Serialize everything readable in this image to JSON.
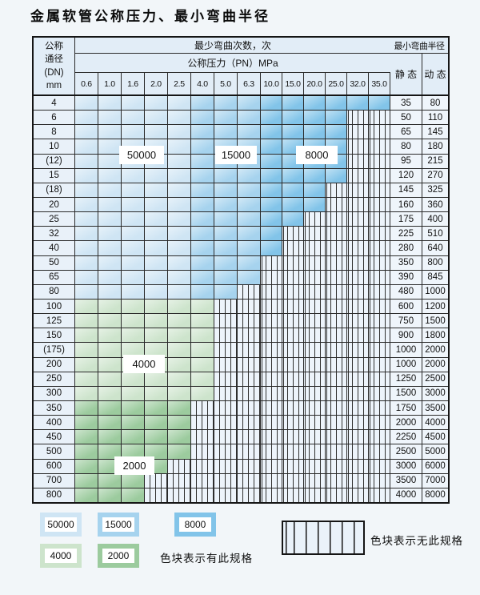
{
  "title": "金属软管公称压力、最小弯曲半径",
  "table": {
    "dn_header_lines": [
      "公称",
      "通径",
      "(DN)",
      "mm"
    ],
    "bend_header": "最少弯曲次数，次",
    "pn_header": "公称压力（PN）MPa",
    "pressure_columns": [
      "0.6",
      "1.0",
      "1.6",
      "2.0",
      "2.5",
      "4.0",
      "5.0",
      "6.3",
      "10.0",
      "15.0",
      "20.0",
      "25.0",
      "32.0",
      "35.0"
    ],
    "radius_header": "最小弯曲半径",
    "static_header": "静 态",
    "dynamic_header": "动 态",
    "rows": [
      {
        "dn": "4",
        "colored_cols": 14,
        "zone": "blue",
        "static": "35",
        "dynamic": "80"
      },
      {
        "dn": "6",
        "colored_cols": 12,
        "zone": "blue",
        "static": "50",
        "dynamic": "110"
      },
      {
        "dn": "8",
        "colored_cols": 12,
        "zone": "blue",
        "static": "65",
        "dynamic": "145"
      },
      {
        "dn": "10",
        "colored_cols": 12,
        "zone": "blue",
        "static": "80",
        "dynamic": "180"
      },
      {
        "dn": "(12)",
        "colored_cols": 12,
        "zone": "blue",
        "static": "95",
        "dynamic": "215"
      },
      {
        "dn": "15",
        "colored_cols": 12,
        "zone": "blue",
        "static": "120",
        "dynamic": "270"
      },
      {
        "dn": "(18)",
        "colored_cols": 11,
        "zone": "blue",
        "static": "145",
        "dynamic": "325"
      },
      {
        "dn": "20",
        "colored_cols": 11,
        "zone": "blue",
        "static": "160",
        "dynamic": "360"
      },
      {
        "dn": "25",
        "colored_cols": 10,
        "zone": "blue",
        "static": "175",
        "dynamic": "400"
      },
      {
        "dn": "32",
        "colored_cols": 9,
        "zone": "blue",
        "static": "225",
        "dynamic": "510"
      },
      {
        "dn": "40",
        "colored_cols": 9,
        "zone": "blue",
        "static": "280",
        "dynamic": "640"
      },
      {
        "dn": "50",
        "colored_cols": 8,
        "zone": "blue",
        "static": "350",
        "dynamic": "800"
      },
      {
        "dn": "65",
        "colored_cols": 8,
        "zone": "blue",
        "static": "390",
        "dynamic": "845"
      },
      {
        "dn": "80",
        "colored_cols": 7,
        "zone": "blue",
        "static": "480",
        "dynamic": "1000"
      },
      {
        "dn": "100",
        "colored_cols": 6,
        "zone": "green_light",
        "static": "600",
        "dynamic": "1200"
      },
      {
        "dn": "125",
        "colored_cols": 6,
        "zone": "green_light",
        "static": "750",
        "dynamic": "1500"
      },
      {
        "dn": "150",
        "colored_cols": 6,
        "zone": "green_light",
        "static": "900",
        "dynamic": "1800"
      },
      {
        "dn": "(175)",
        "colored_cols": 6,
        "zone": "green_light",
        "static": "1000",
        "dynamic": "2000"
      },
      {
        "dn": "200",
        "colored_cols": 6,
        "zone": "green_light",
        "static": "1000",
        "dynamic": "2000"
      },
      {
        "dn": "250",
        "colored_cols": 6,
        "zone": "green_light",
        "static": "1250",
        "dynamic": "2500"
      },
      {
        "dn": "300",
        "colored_cols": 6,
        "zone": "green_light",
        "static": "1500",
        "dynamic": "3000"
      },
      {
        "dn": "350",
        "colored_cols": 5,
        "zone": "green_dark",
        "static": "1750",
        "dynamic": "3500"
      },
      {
        "dn": "400",
        "colored_cols": 5,
        "zone": "green_dark",
        "static": "2000",
        "dynamic": "4000"
      },
      {
        "dn": "450",
        "colored_cols": 5,
        "zone": "green_dark",
        "static": "2250",
        "dynamic": "4500"
      },
      {
        "dn": "500",
        "colored_cols": 5,
        "zone": "green_dark",
        "static": "2500",
        "dynamic": "5000"
      },
      {
        "dn": "600",
        "colored_cols": 4,
        "zone": "green_dark",
        "static": "3000",
        "dynamic": "6000"
      },
      {
        "dn": "700",
        "colored_cols": 3,
        "zone": "green_dark",
        "static": "3500",
        "dynamic": "7000"
      },
      {
        "dn": "800",
        "colored_cols": 3,
        "zone": "green_dark",
        "static": "4000",
        "dynamic": "8000"
      }
    ],
    "zone_labels": [
      {
        "text": "50000"
      },
      {
        "text": "15000"
      },
      {
        "text": "8000"
      },
      {
        "text": "4000"
      },
      {
        "text": "2000"
      }
    ]
  },
  "colors": {
    "blue_50000": "#cfe5f4",
    "blue_15000": "#a6d3ee",
    "blue_8000": "#82c4e9",
    "green_4000": "#cde4cc",
    "green_2000": "#9ccb9e",
    "hatch_bg": "#edf4fb",
    "label_col_bg": "#e9f1f9",
    "value_col_bg": "#eff5fb",
    "header_bg": "#e2edf7",
    "grid_line": "#2a2a2a"
  },
  "legend": {
    "items": [
      {
        "label": "50000",
        "color_key": "blue_50000"
      },
      {
        "label": "15000",
        "color_key": "blue_15000"
      },
      {
        "label": "8000",
        "color_key": "blue_8000"
      },
      {
        "label": "4000",
        "color_key": "green_4000"
      },
      {
        "label": "2000",
        "color_key": "green_2000"
      }
    ],
    "has_spec_text": "色块表示有此规格",
    "no_spec_text": "色块表示无此规格"
  }
}
